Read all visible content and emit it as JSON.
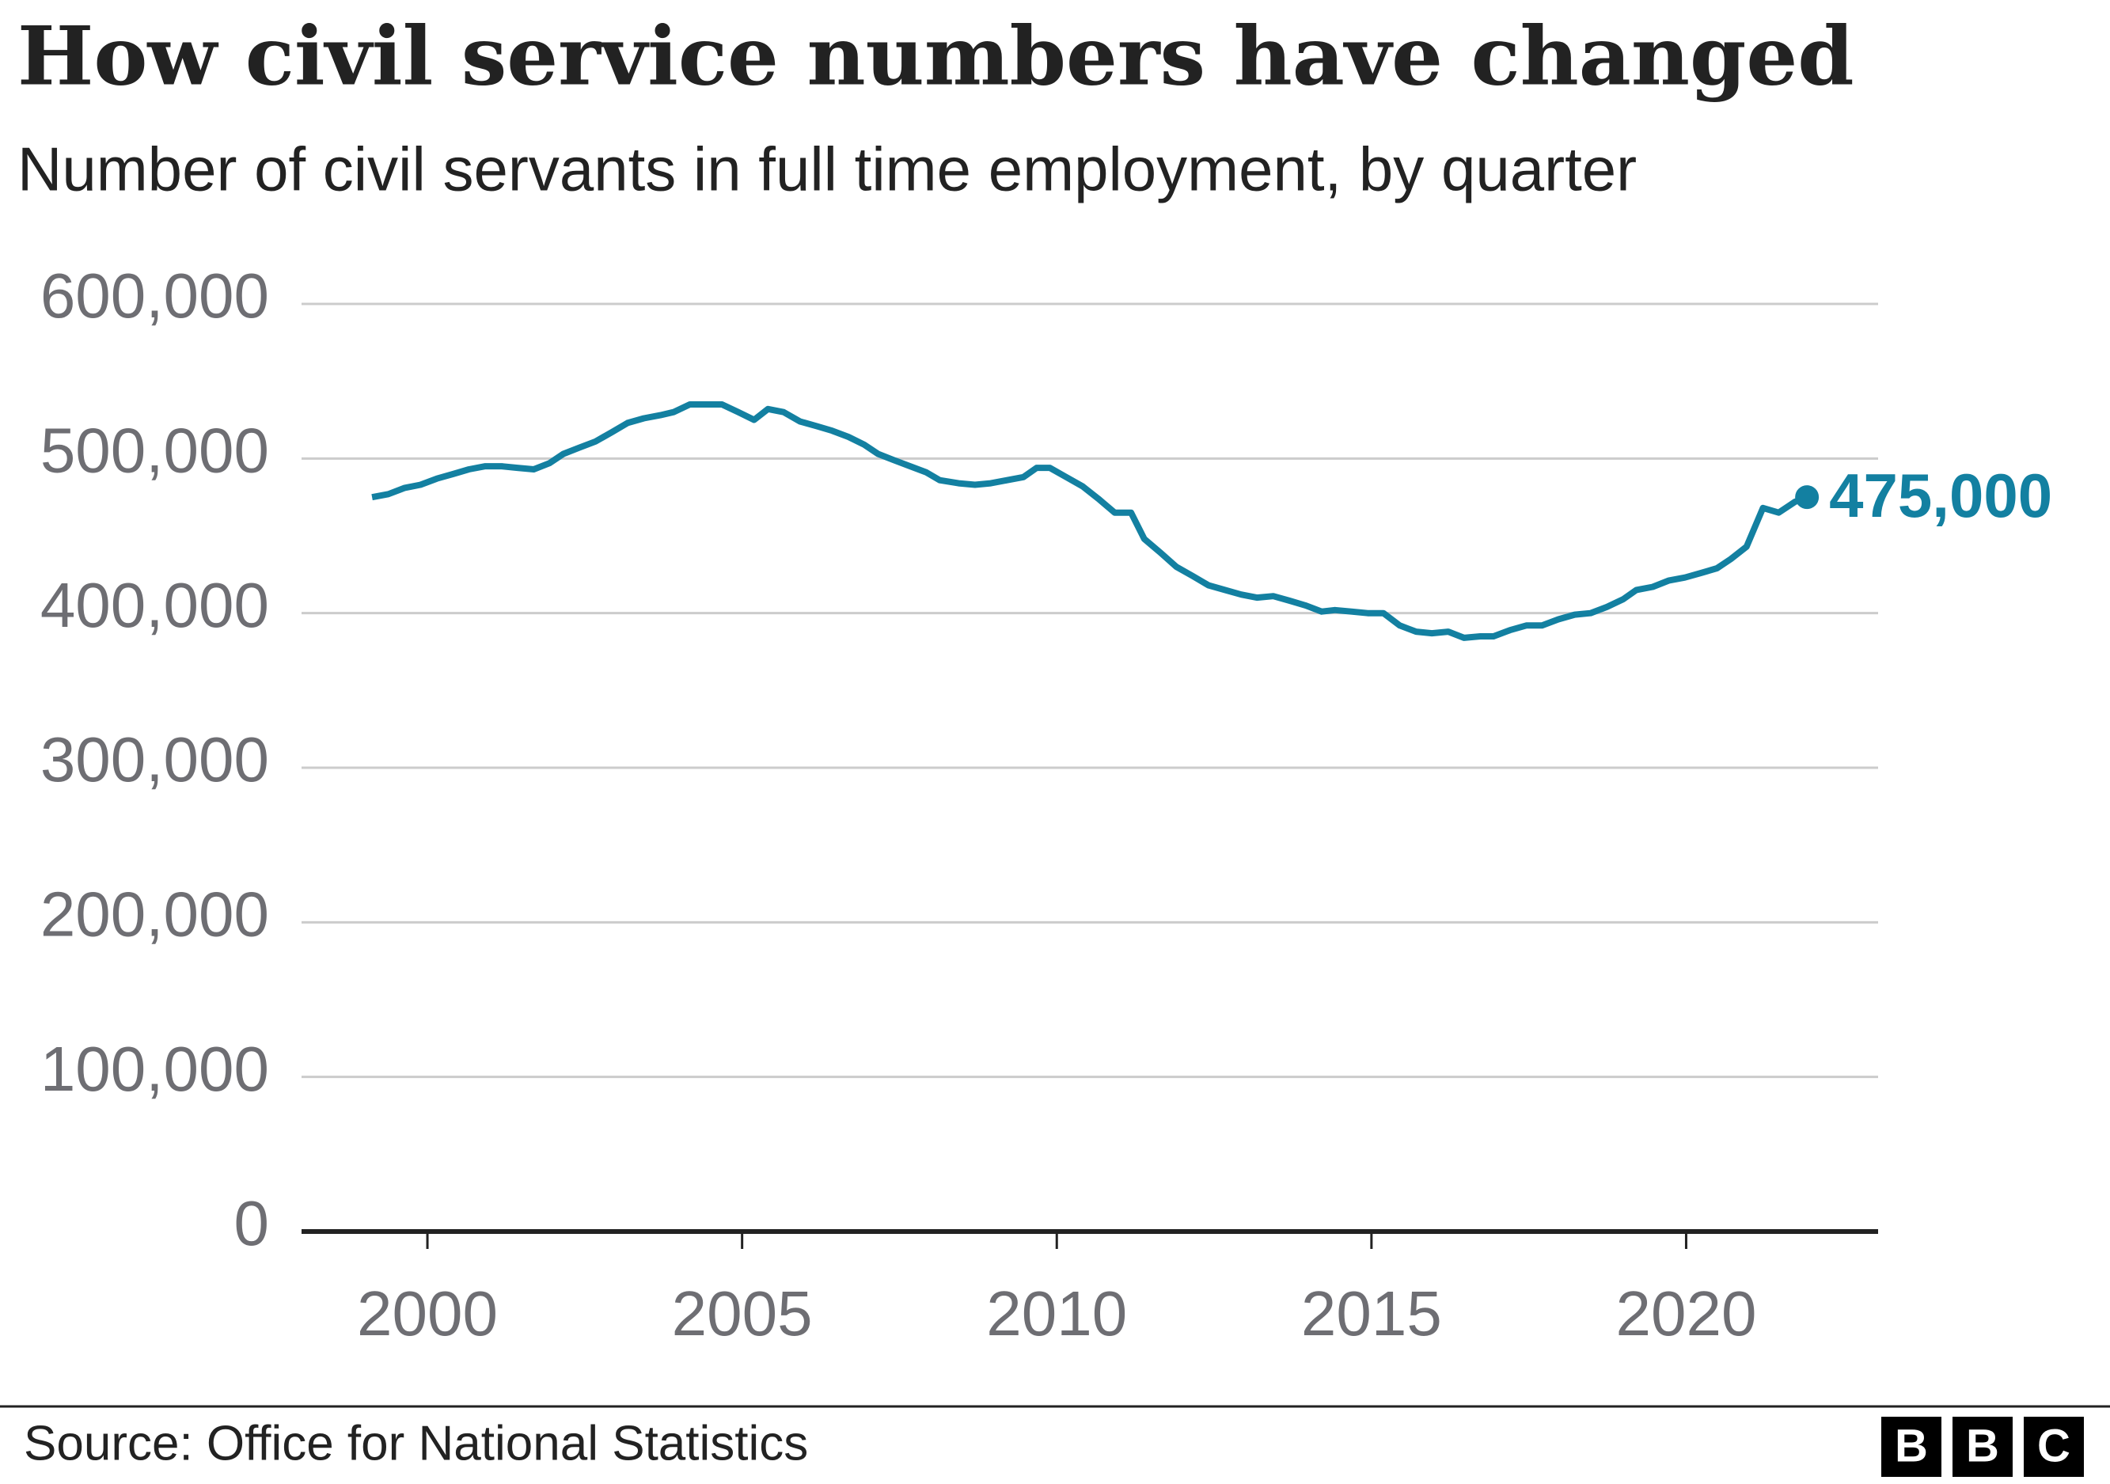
{
  "chart_data": {
    "type": "line",
    "title": "How civil service numbers have changed",
    "subtitle": "Number of civil servants in full time employment, by quarter",
    "source": "Source: Office for National Statistics",
    "logo": [
      "B",
      "B",
      "C"
    ],
    "xlim": [
      1998,
      2023.05
    ],
    "xticks": [
      2000,
      2005,
      2010,
      2015,
      2020
    ],
    "ylim": [
      0,
      600000
    ],
    "yticks": [
      0,
      {
        "value": 100000,
        "label": "100,000"
      },
      {
        "value": 200000,
        "label": "200,000"
      },
      {
        "value": 300000,
        "label": "300,000"
      },
      {
        "value": 400000,
        "label": "400,000"
      },
      {
        "value": 500000,
        "label": "500,000"
      },
      {
        "value": 600000,
        "label": "600,000"
      }
    ],
    "grid": true,
    "annotation": {
      "label": "475,000"
    },
    "series": [
      {
        "color": "#1380a1",
        "x": [
          1999.12,
          1999.38,
          1999.64,
          1999.89,
          2000.15,
          2000.41,
          2000.66,
          2000.92,
          2001.18,
          2001.43,
          2001.69,
          2001.94,
          2002.16,
          2002.41,
          2002.67,
          2002.93,
          2003.18,
          2003.44,
          2003.7,
          2003.91,
          2004.17,
          2004.42,
          2004.68,
          2004.94,
          2005.19,
          2005.41,
          2005.66,
          2005.92,
          2006.18,
          2006.43,
          2006.69,
          2006.94,
          2007.16,
          2007.41,
          2007.67,
          2007.93,
          2008.14,
          2008.44,
          2008.7,
          2008.95,
          2009.21,
          2009.47,
          2009.68,
          2009.89,
          2010.15,
          2010.41,
          2010.66,
          2010.92,
          2011.18,
          2011.39,
          2011.65,
          2011.9,
          2012.16,
          2012.41,
          2012.67,
          2012.93,
          2013.18,
          2013.44,
          2013.7,
          2013.95,
          2014.21,
          2014.42,
          2014.68,
          2014.94,
          2015.19,
          2015.45,
          2015.71,
          2015.96,
          2016.22,
          2016.47,
          2016.73,
          2016.94,
          2017.2,
          2017.46,
          2017.71,
          2017.97,
          2018.23,
          2018.48,
          2018.74,
          2019.0,
          2019.21,
          2019.47,
          2019.72,
          2019.98,
          2020.24,
          2020.49,
          2020.71,
          2020.96,
          2021.22,
          2021.47,
          2021.73,
          2021.92
        ],
        "values": [
          475000,
          477000,
          481000,
          483000,
          487000,
          490000,
          493000,
          495000,
          495000,
          494000,
          493000,
          497000,
          503000,
          507000,
          511000,
          517000,
          523000,
          526000,
          528000,
          530000,
          535000,
          535000,
          535000,
          530000,
          525000,
          532000,
          530000,
          524000,
          521000,
          518000,
          514000,
          509000,
          503000,
          499000,
          495000,
          491000,
          486000,
          484000,
          483000,
          484000,
          486000,
          488000,
          494000,
          494000,
          488000,
          482000,
          474000,
          465000,
          465000,
          448000,
          439000,
          430000,
          424000,
          418000,
          415000,
          412000,
          410000,
          411000,
          408000,
          405000,
          401000,
          402000,
          401000,
          400000,
          400000,
          392000,
          388000,
          387000,
          388000,
          384000,
          385000,
          385000,
          389000,
          392000,
          392000,
          396000,
          399000,
          400000,
          404000,
          409000,
          415000,
          417000,
          421000,
          423000,
          426000,
          429000,
          435000,
          443000,
          468000,
          465000,
          472000,
          475000
        ]
      }
    ]
  }
}
